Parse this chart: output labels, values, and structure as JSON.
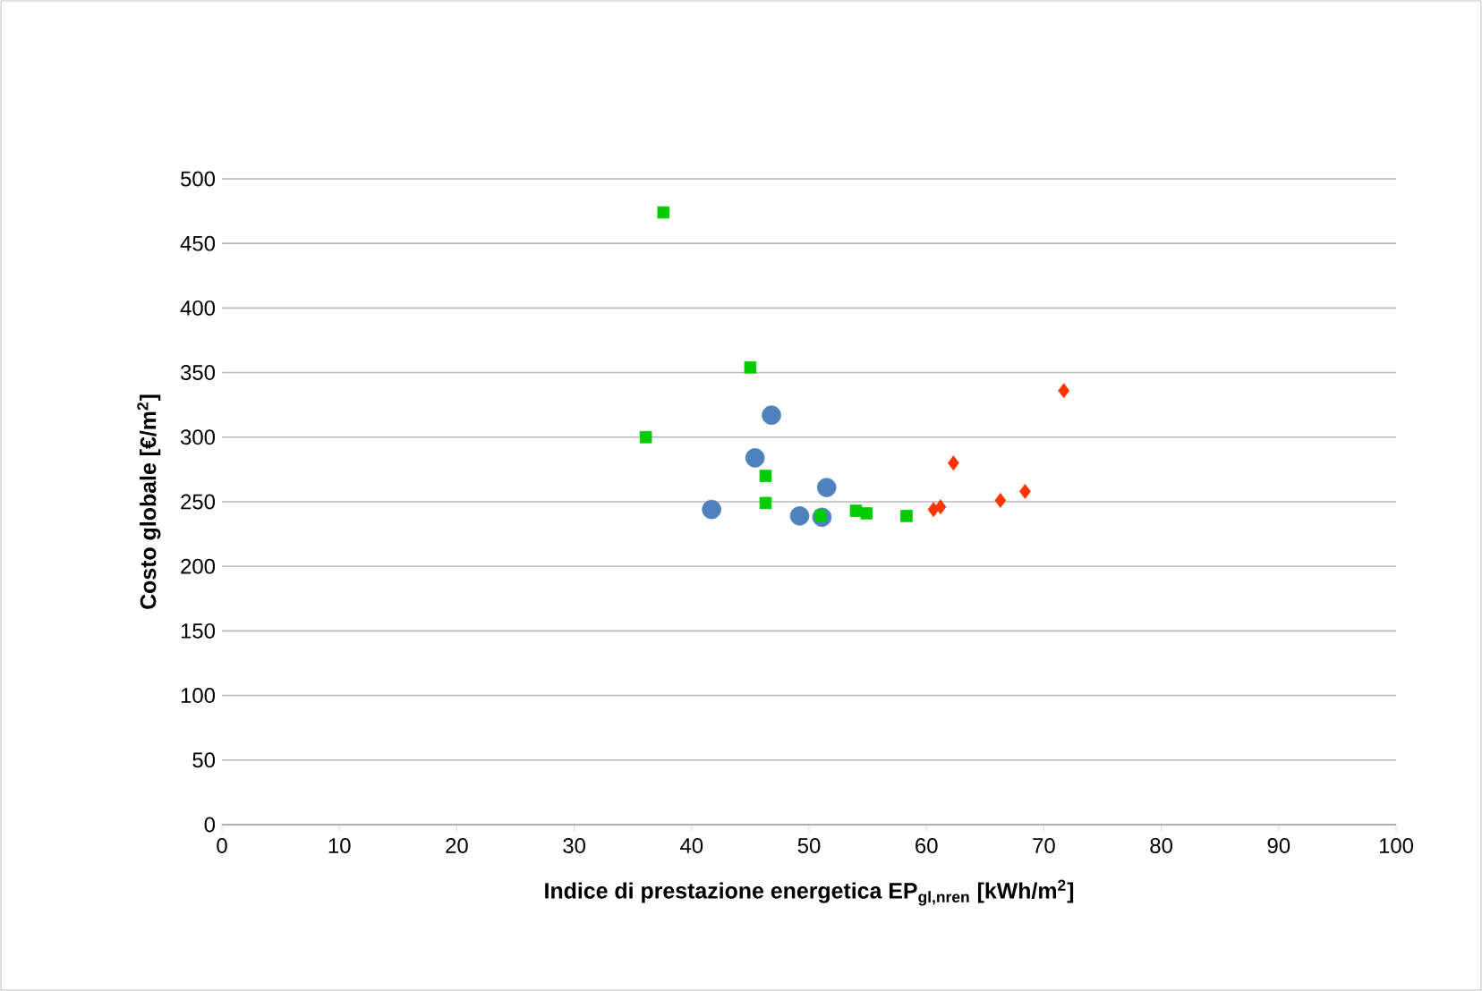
{
  "chart_data": {
    "type": "scatter",
    "xlabel": "Indice di prestazione energetica  EP$_{gl,nren}$ [kWh/m$^{2}$]",
    "ylabel": "Costo globale [€/m$^{2}$]",
    "xlim": [
      0,
      100
    ],
    "xticks": [
      0,
      10,
      20,
      30,
      40,
      50,
      60,
      70,
      80,
      90,
      100
    ],
    "ylim": [
      0,
      500
    ],
    "yticks": [
      0,
      50,
      100,
      150,
      200,
      250,
      300,
      350,
      400,
      450,
      500
    ],
    "grid": "y",
    "series": [
      {
        "color": "#4f81bd",
        "marker": "circle",
        "x": [
          46.8,
          45.4,
          41.7,
          51.5,
          49.2,
          51.1
        ],
        "values": [
          317,
          284,
          244,
          261,
          239,
          238
        ]
      },
      {
        "color": "#00cc00",
        "marker": "square",
        "x": [
          37.6,
          45.0,
          36.1,
          46.3,
          46.3,
          51.0,
          54.0,
          54.9,
          58.3
        ],
        "values": [
          474,
          354,
          300,
          270,
          249,
          239,
          243,
          241,
          239
        ]
      },
      {
        "color": "#ff3300",
        "marker": "diamond",
        "x": [
          71.7,
          62.3,
          61.2,
          60.6,
          66.3,
          68.4
        ],
        "values": [
          336,
          280,
          246,
          244,
          251,
          258
        ]
      }
    ]
  }
}
